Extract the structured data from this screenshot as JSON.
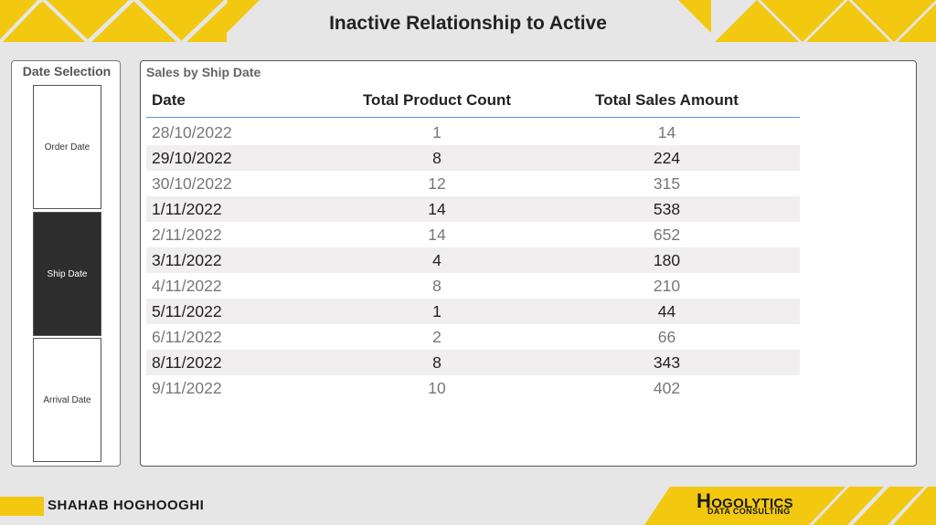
{
  "page": {
    "title": "Inactive Relationship to Active",
    "accent_color": "#f2c811",
    "background_color": "#e6e6e6"
  },
  "slicer": {
    "title": "Date Selection",
    "options": [
      {
        "label": "Order Date",
        "selected": false
      },
      {
        "label": "Ship Date",
        "selected": true
      },
      {
        "label": "Arrival Date",
        "selected": false
      }
    ]
  },
  "table_visual": {
    "title": "Sales by Ship Date",
    "columns": [
      "Date",
      "Total Product Count",
      "Total Sales Amount"
    ],
    "rows": [
      [
        "28/10/2022",
        "1",
        "14"
      ],
      [
        "29/10/2022",
        "8",
        "224"
      ],
      [
        "30/10/2022",
        "12",
        "315"
      ],
      [
        "1/11/2022",
        "14",
        "538"
      ],
      [
        "2/11/2022",
        "14",
        "652"
      ],
      [
        "3/11/2022",
        "4",
        "180"
      ],
      [
        "4/11/2022",
        "8",
        "210"
      ],
      [
        "5/11/2022",
        "1",
        "44"
      ],
      [
        "6/11/2022",
        "2",
        "66"
      ],
      [
        "8/11/2022",
        "8",
        "343"
      ],
      [
        "9/11/2022",
        "10",
        "402"
      ]
    ]
  },
  "footer": {
    "author": "SHAHAB HOGHOOGHI",
    "brand_initial": "H",
    "brand_rest": "OGOLYTICS",
    "brand_tagline": "DATA CONSULTING"
  }
}
